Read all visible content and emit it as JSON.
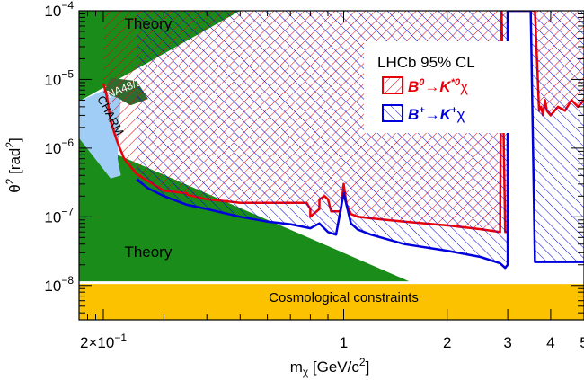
{
  "chart_data": {
    "type": "area",
    "title": "",
    "xlabel": "m",
    "xlabel_sub": "χ",
    "xlabel_unit": "[GeV/c",
    "xlabel_sup": "2",
    "xlabel_close": "]",
    "ylabel": "θ",
    "ylabel_sup": "2",
    "ylabel_unit": "[rad",
    "ylabel_unit_sup": "2",
    "ylabel_close": "]",
    "x_scale": "log",
    "y_scale": "log",
    "xlim": [
      0.17,
      5.0
    ],
    "ylim": [
      3.16e-09,
      0.0001
    ],
    "x_ticks": [
      {
        "value": 0.2,
        "base": "2×10",
        "exp": "−1"
      },
      {
        "value": 1,
        "base": "1",
        "exp": ""
      },
      {
        "value": 2,
        "base": "2",
        "exp": ""
      },
      {
        "value": 3,
        "base": "3",
        "exp": ""
      },
      {
        "value": 4,
        "base": "4",
        "exp": ""
      },
      {
        "value": 5,
        "base": "5",
        "exp": ""
      }
    ],
    "y_ticks": [
      {
        "value": 1e-08,
        "base": "10",
        "exp": "−8"
      },
      {
        "value": 1e-07,
        "base": "10",
        "exp": "−7"
      },
      {
        "value": 1e-06,
        "base": "10",
        "exp": "−6"
      },
      {
        "value": 1e-05,
        "base": "10",
        "exp": "−5"
      },
      {
        "value": 0.0001,
        "base": "10",
        "exp": "−4"
      }
    ],
    "regions": [
      {
        "name": "theory_upper",
        "label": "Theory",
        "color": "#1a8c1a",
        "polygon": [
          [
            0.17,
            0.0001
          ],
          [
            0.17,
            4.8e-06
          ],
          [
            0.5,
            0.0001
          ]
        ]
      },
      {
        "name": "theory_lower",
        "label": "Theory",
        "color": "#1a8c1a",
        "polygon": [
          [
            0.17,
            1.4e-06
          ],
          [
            0.17,
            1.15e-08
          ],
          [
            1.55,
            1.15e-08
          ]
        ]
      },
      {
        "name": "charm",
        "label": "CHARM",
        "color": "#9fcdf5",
        "polygon": [
          [
            0.17,
            4.8e-06
          ],
          [
            0.226,
            9.1e-06
          ],
          [
            0.22,
            7e-07
          ],
          [
            0.225,
            4e-07
          ],
          [
            0.21,
            3.6e-07
          ],
          [
            0.17,
            1.4e-06
          ]
        ]
      },
      {
        "name": "na48",
        "label": "NA48/2",
        "color": "#2f6b2f",
        "polygon": [
          [
            0.21,
            1.05e-05
          ],
          [
            0.25,
            9.5e-06
          ],
          [
            0.27,
            5.2e-06
          ],
          [
            0.24,
            4.2e-06
          ],
          [
            0.22,
            5.4e-06
          ],
          [
            0.2,
            6.5e-06
          ]
        ]
      },
      {
        "name": "cosmo",
        "label": "Cosmological constraints",
        "color": "#fcc200",
        "polygon": [
          [
            0.17,
            1.05e-08
          ],
          [
            5.0,
            1.05e-08
          ],
          [
            5.0,
            3.2e-09
          ],
          [
            0.17,
            3.2e-09
          ]
        ]
      }
    ],
    "series": [
      {
        "name": "B⁰→K*⁰χ",
        "color": "#e8000b",
        "x": [
          0.2,
          0.205,
          0.21,
          0.215,
          0.22,
          0.23,
          0.25,
          0.27,
          0.3,
          0.35,
          0.35,
          0.4,
          0.5,
          0.5,
          0.55,
          0.6,
          0.65,
          0.7,
          0.75,
          0.78,
          0.8,
          0.8,
          0.85,
          0.85,
          0.88,
          0.9,
          0.92,
          0.95,
          0.98,
          1.0,
          1.02,
          1.05,
          1.1,
          1.2,
          1.5,
          2.0,
          2.5,
          2.85,
          2.88,
          2.88,
          2.95,
          3.0,
          3.0,
          3.3,
          3.3,
          3.5,
          3.6,
          3.6,
          3.7,
          3.75,
          3.8,
          3.85,
          3.9,
          4.0,
          4.2,
          4.4,
          4.6,
          4.8,
          5.0
        ],
        "y": [
          8.8e-06,
          5.5e-06,
          2.5e-06,
          1.7e-06,
          1.2e-06,
          7e-07,
          4.2e-07,
          3.3e-07,
          2.4e-07,
          2.2e-07,
          2.1e-07,
          1.8e-07,
          1.6e-07,
          1.6e-07,
          1.6e-07,
          1.6e-07,
          1.6e-07,
          1.6e-07,
          1.6e-07,
          1.6e-07,
          1.3e-07,
          1e-07,
          1.3e-07,
          1.8e-07,
          2e-07,
          1.8e-07,
          1.2e-07,
          1.2e-07,
          1.2e-07,
          3e-07,
          1.5e-07,
          1.1e-07,
          1e-07,
          9.5e-08,
          8.5e-08,
          7.5e-08,
          6.6e-08,
          6e-08,
          0.0001,
          0.0001,
          6e-08,
          6e-08,
          0.0001,
          0.0001,
          0.0001,
          0.0001,
          0.0001,
          0.0001,
          3.5e-06,
          4e-06,
          3e-06,
          5e-06,
          3.5e-06,
          3e-06,
          4e-06,
          3.5e-06,
          5e-06,
          4e-06,
          5e-06
        ]
      },
      {
        "name": "B⁺→K⁺χ",
        "color": "#0000dd",
        "x": [
          0.25,
          0.27,
          0.3,
          0.35,
          0.4,
          0.5,
          0.6,
          0.7,
          0.8,
          0.85,
          0.9,
          0.95,
          1.0,
          1.05,
          1.1,
          1.2,
          1.5,
          2.0,
          2.5,
          2.85,
          2.95,
          3.0,
          3.0,
          3.5,
          3.6,
          4.0,
          4.5,
          5.0
        ],
        "y": [
          3.5e-07,
          2.6e-07,
          2e-07,
          1.5e-07,
          1.3e-07,
          1e-07,
          8.5e-08,
          7.8e-08,
          6.8e-08,
          8e-08,
          6e-08,
          5.5e-08,
          2.2e-07,
          8e-08,
          6.5e-08,
          5.5e-08,
          4e-08,
          3.2e-08,
          2.6e-08,
          2.1e-08,
          1.8e-08,
          2e-08,
          0.0001,
          0.0001,
          2.2e-08,
          2.2e-08,
          2.2e-08,
          2.2e-08
        ]
      }
    ],
    "legend": {
      "title": "LHCb 95% CL",
      "position": "top-right",
      "entries": [
        {
          "label_parts": [
            "B",
            "0",
            "→K",
            "*0",
            "χ"
          ],
          "color": "#e8000b"
        },
        {
          "label_parts": [
            "B",
            "+",
            "→K",
            "+",
            "χ"
          ],
          "color": "#0000dd"
        }
      ]
    },
    "annotations": [
      {
        "text": "Theory",
        "region": "upper"
      },
      {
        "text": "Theory",
        "region": "lower"
      },
      {
        "text": "CHARM",
        "region": "charm"
      },
      {
        "text": "NA48/2",
        "region": "na48"
      },
      {
        "text": "Cosmological constraints",
        "region": "cosmo"
      }
    ],
    "grid": false
  }
}
